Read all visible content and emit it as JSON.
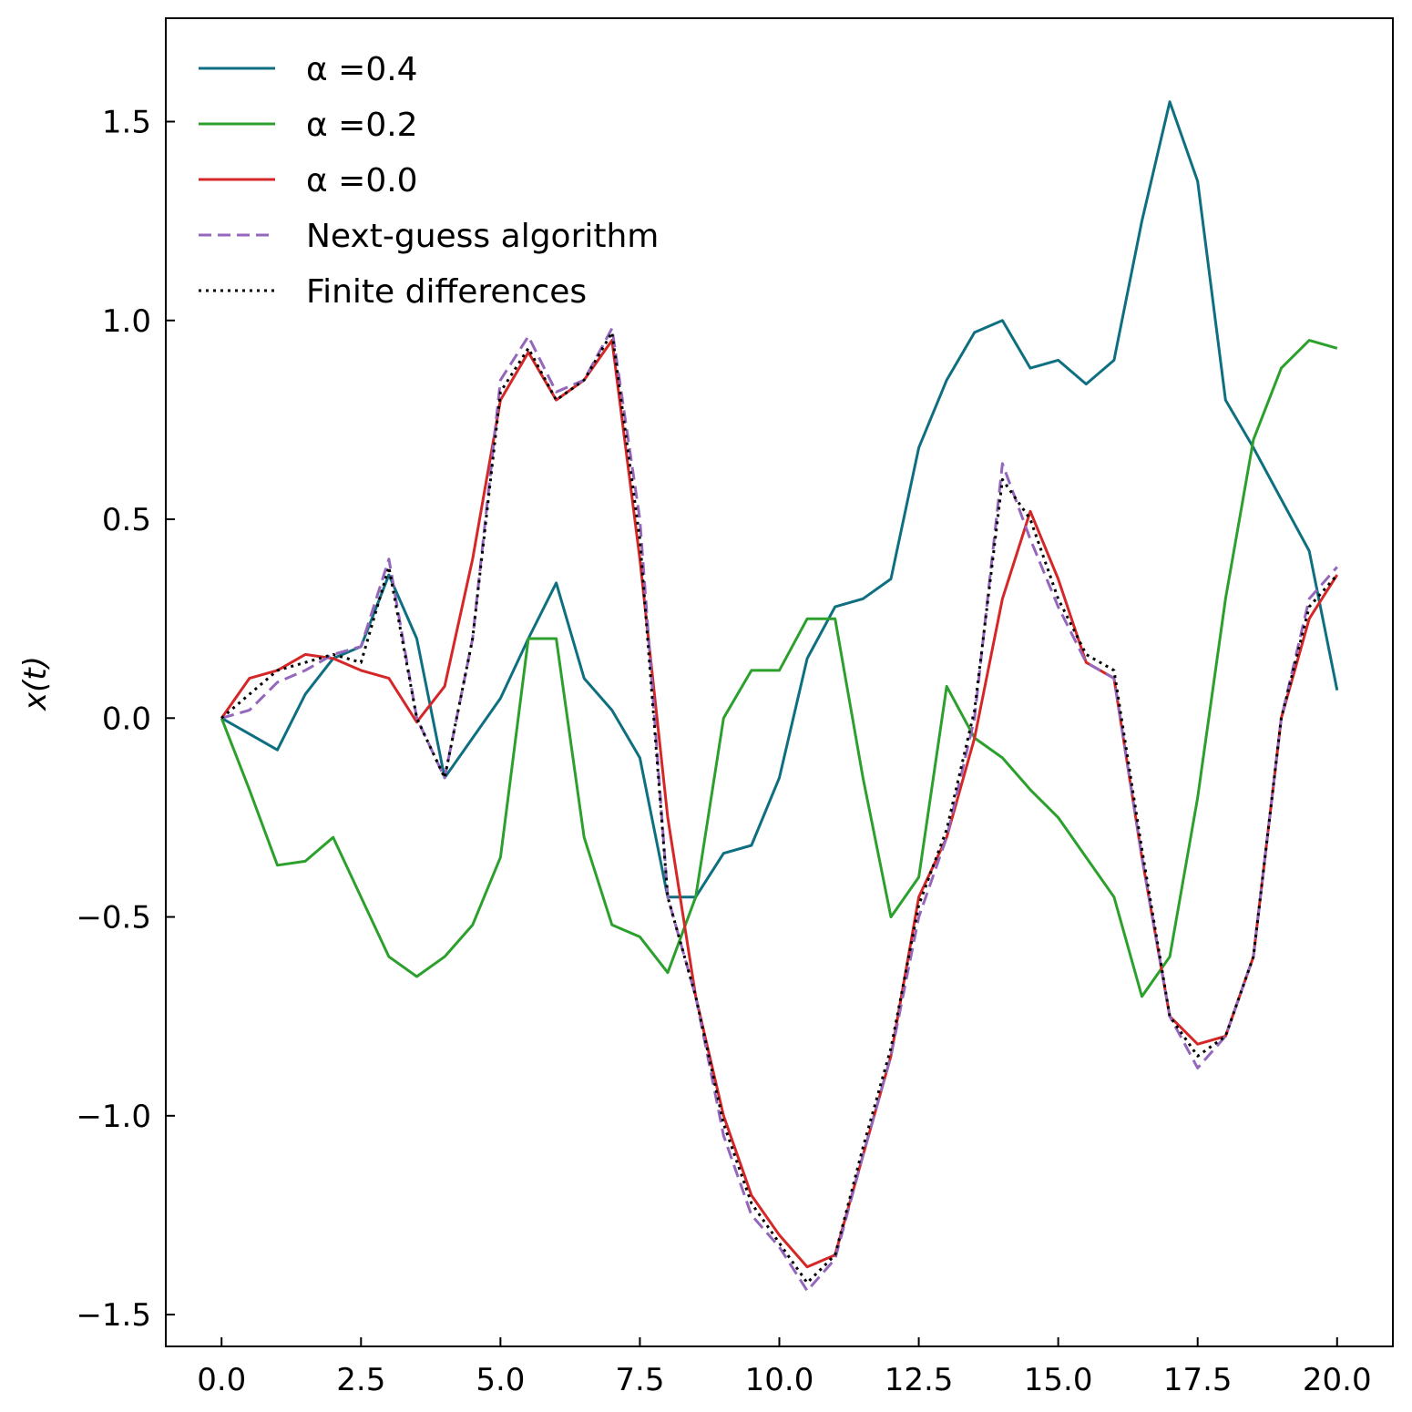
{
  "chart_data": {
    "type": "line",
    "title": "",
    "xlabel": "",
    "ylabel": "x(t)",
    "xlim": [
      -1.0,
      21.0
    ],
    "ylim": [
      -1.58,
      1.76
    ],
    "xticks": [
      0.0,
      2.5,
      5.0,
      7.5,
      10.0,
      12.5,
      15.0,
      17.5,
      20.0
    ],
    "xtick_labels": [
      "0.0",
      "2.5",
      "5.0",
      "7.5",
      "10.0",
      "12.5",
      "15.0",
      "17.5",
      "20.0"
    ],
    "yticks": [
      -1.5,
      -1.0,
      -0.5,
      0.0,
      0.5,
      1.0,
      1.5
    ],
    "ytick_labels": [
      "−1.5",
      "−1.0",
      "−0.5",
      "0.0",
      "0.5",
      "1.0",
      "1.5"
    ],
    "grid": false,
    "legend_position": "top-left",
    "legend": [
      {
        "label": "α =0.4",
        "style": "solid",
        "color": "#0d6f80"
      },
      {
        "label": "α =0.2",
        "style": "solid",
        "color": "#2ca02c"
      },
      {
        "label": "α =0.0",
        "style": "solid",
        "color": "#d62728"
      },
      {
        "label": "Next-guess algorithm",
        "style": "dashed",
        "color": "#9467bd"
      },
      {
        "label": "Finite differences",
        "style": "dotted",
        "color": "#000000"
      }
    ],
    "x": [
      0.0,
      0.5,
      1.0,
      1.5,
      2.0,
      2.5,
      3.0,
      3.5,
      4.0,
      4.5,
      5.0,
      5.5,
      6.0,
      6.5,
      7.0,
      7.5,
      8.0,
      8.5,
      9.0,
      9.5,
      10.0,
      10.5,
      11.0,
      11.5,
      12.0,
      12.5,
      13.0,
      13.5,
      14.0,
      14.5,
      15.0,
      15.5,
      16.0,
      16.5,
      17.0,
      17.5,
      18.0,
      18.5,
      19.0,
      19.5,
      20.0
    ],
    "series": [
      {
        "name": "α =0.4",
        "color": "#0d6f80",
        "style": "solid",
        "values": [
          0.0,
          -0.04,
          -0.08,
          0.06,
          0.15,
          0.18,
          0.36,
          0.2,
          -0.15,
          -0.05,
          0.05,
          0.2,
          0.34,
          0.1,
          0.02,
          -0.1,
          -0.45,
          -0.45,
          -0.34,
          -0.32,
          -0.15,
          0.15,
          0.28,
          0.3,
          0.35,
          0.68,
          0.85,
          0.97,
          1.0,
          0.88,
          0.9,
          0.84,
          0.9,
          1.25,
          1.55,
          1.35,
          0.8,
          0.68,
          0.55,
          0.42,
          0.07
        ]
      },
      {
        "name": "α =0.2",
        "color": "#2ca02c",
        "style": "solid",
        "values": [
          0.0,
          -0.18,
          -0.37,
          -0.36,
          -0.3,
          -0.45,
          -0.6,
          -0.65,
          -0.6,
          -0.52,
          -0.35,
          0.2,
          0.2,
          -0.3,
          -0.52,
          -0.55,
          -0.64,
          -0.45,
          0.0,
          0.12,
          0.12,
          0.25,
          0.25,
          -0.15,
          -0.5,
          -0.4,
          0.08,
          -0.05,
          -0.1,
          -0.18,
          -0.25,
          -0.35,
          -0.45,
          -0.7,
          -0.6,
          -0.2,
          0.3,
          0.7,
          0.88,
          0.95,
          0.93
        ]
      },
      {
        "name": "α =0.0",
        "color": "#d62728",
        "style": "solid",
        "values": [
          0.0,
          0.1,
          0.12,
          0.16,
          0.15,
          0.12,
          0.1,
          -0.01,
          0.08,
          0.4,
          0.8,
          0.92,
          0.8,
          0.85,
          0.95,
          0.4,
          -0.25,
          -0.7,
          -1.0,
          -1.2,
          -1.3,
          -1.38,
          -1.35,
          -1.1,
          -0.85,
          -0.45,
          -0.3,
          -0.05,
          0.3,
          0.52,
          0.35,
          0.14,
          0.1,
          -0.35,
          -0.75,
          -0.82,
          -0.8,
          -0.6,
          0.0,
          0.25,
          0.36
        ]
      },
      {
        "name": "Next-guess algorithm",
        "color": "#9467bd",
        "style": "dashed",
        "values": [
          0.0,
          0.02,
          0.09,
          0.12,
          0.16,
          0.18,
          0.4,
          0.0,
          -0.15,
          0.2,
          0.85,
          0.96,
          0.82,
          0.85,
          0.98,
          0.5,
          -0.45,
          -0.7,
          -1.05,
          -1.25,
          -1.33,
          -1.44,
          -1.36,
          -1.1,
          -0.85,
          -0.5,
          -0.3,
          0.0,
          0.64,
          0.45,
          0.28,
          0.14,
          0.1,
          -0.35,
          -0.75,
          -0.88,
          -0.8,
          -0.6,
          0.0,
          0.3,
          0.38
        ]
      },
      {
        "name": "Finite differences",
        "color": "#000000",
        "style": "dotted",
        "values": [
          0.0,
          0.06,
          0.12,
          0.14,
          0.16,
          0.14,
          0.38,
          0.0,
          -0.15,
          0.2,
          0.82,
          0.93,
          0.8,
          0.85,
          0.97,
          0.45,
          -0.45,
          -0.7,
          -1.02,
          -1.22,
          -1.32,
          -1.42,
          -1.35,
          -1.08,
          -0.83,
          -0.47,
          -0.28,
          0.02,
          0.6,
          0.5,
          0.3,
          0.16,
          0.12,
          -0.33,
          -0.75,
          -0.85,
          -0.8,
          -0.6,
          0.0,
          0.28,
          0.36
        ]
      }
    ]
  }
}
